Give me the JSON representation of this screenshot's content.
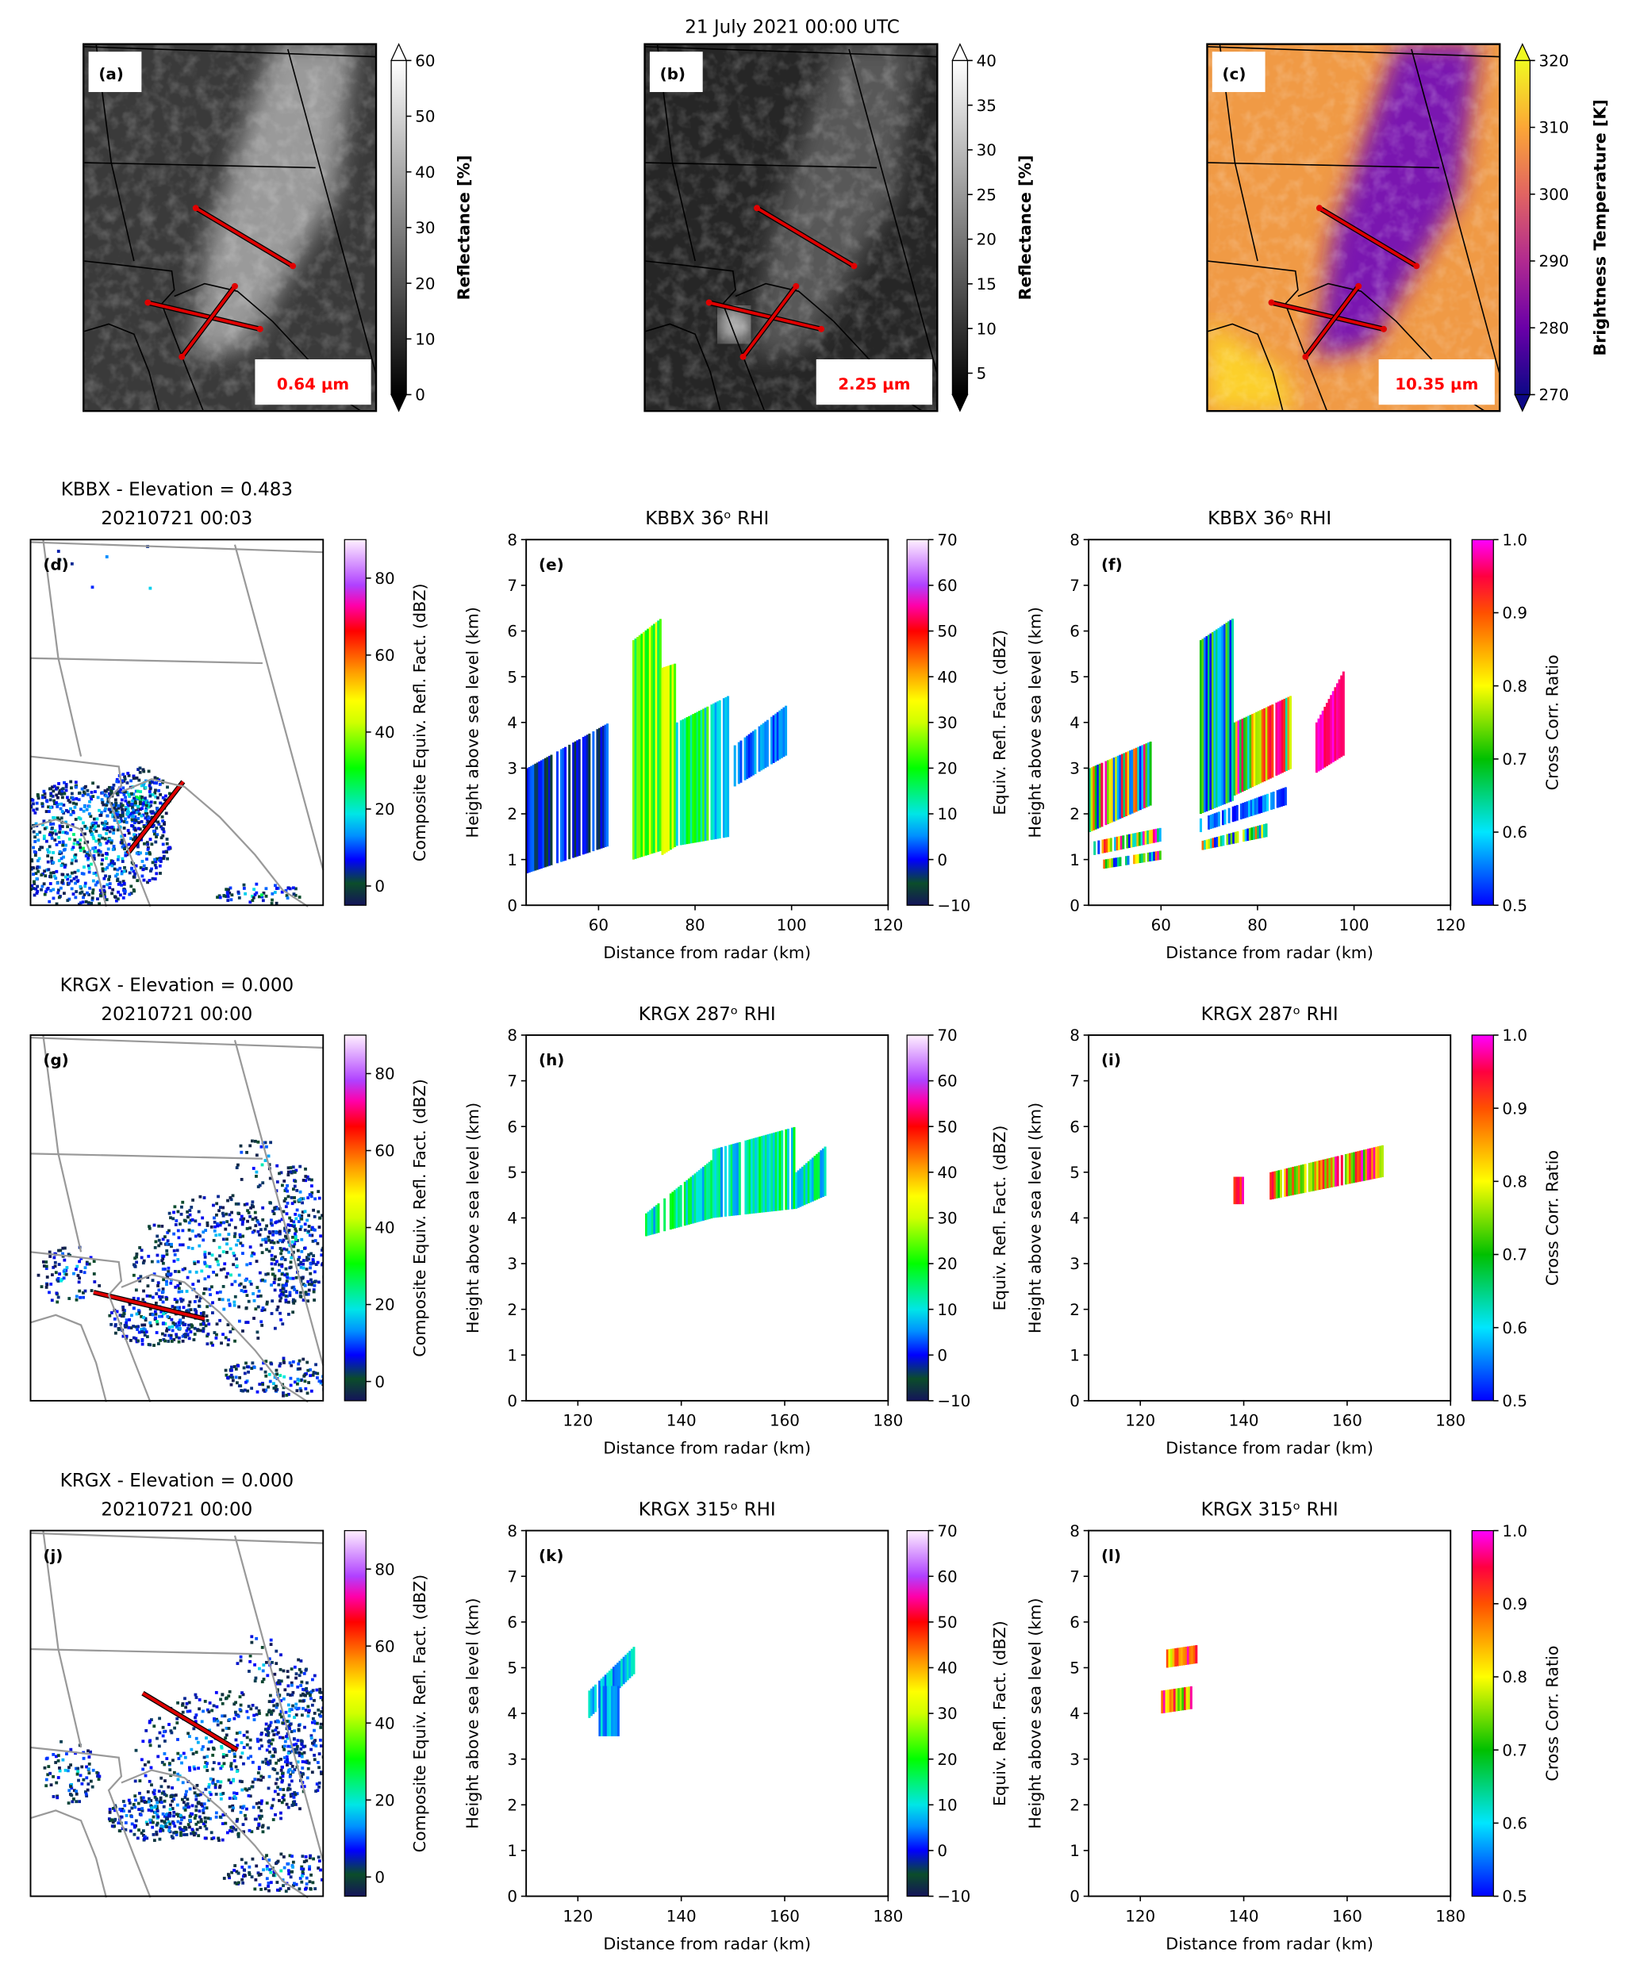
{
  "figure_title": "21 July 2021 00:00 UTC",
  "colormaps": {
    "gray": [
      [
        0,
        "#000000"
      ],
      [
        1,
        "#ffffff"
      ]
    ],
    "plasma": [
      [
        0,
        "#0d0887"
      ],
      [
        0.2,
        "#6a00a8"
      ],
      [
        0.4,
        "#b12a90"
      ],
      [
        0.6,
        "#e16462"
      ],
      [
        0.8,
        "#fca636"
      ],
      [
        1,
        "#f0f921"
      ]
    ],
    "reflectivity": [
      [
        0,
        "#14145a"
      ],
      [
        0.06,
        "#0b4d2a"
      ],
      [
        0.125,
        "#0000ff"
      ],
      [
        0.19,
        "#0090ff"
      ],
      [
        0.25,
        "#00e6e6"
      ],
      [
        0.375,
        "#00ff00"
      ],
      [
        0.5,
        "#d0ff00"
      ],
      [
        0.56,
        "#ffff00"
      ],
      [
        0.64,
        "#ff9a00"
      ],
      [
        0.75,
        "#ff0000"
      ],
      [
        0.82,
        "#ff00aa"
      ],
      [
        0.875,
        "#b040ff"
      ],
      [
        1,
        "#fff0ff"
      ]
    ],
    "cross_corr": [
      [
        0,
        "#0000ff"
      ],
      [
        0.2,
        "#00e6ff"
      ],
      [
        0.4,
        "#00c000"
      ],
      [
        0.6,
        "#ffff00"
      ],
      [
        0.8,
        "#ff5000"
      ],
      [
        0.9,
        "#ff0040"
      ],
      [
        1,
        "#ff00ff"
      ]
    ]
  },
  "chart_data": [
    {
      "panel_label": "(a)",
      "type": "heatmap",
      "channel_label": "0.64 µm",
      "colorbar": {
        "label": "Reflectance [%]",
        "colormap": "gray",
        "range": [
          0,
          60
        ],
        "ticks": [
          0,
          10,
          20,
          30,
          40,
          50,
          60
        ],
        "tick_labels": [
          "0",
          "10",
          "20",
          "30",
          "40",
          "50",
          "60"
        ],
        "extend": "both"
      }
    },
    {
      "panel_label": "(b)",
      "type": "heatmap",
      "channel_label": "2.25 µm",
      "colorbar": {
        "label": "Reflectance [%]",
        "colormap": "gray",
        "range": [
          2.6,
          40
        ],
        "ticks": [
          5,
          10,
          15,
          20,
          25,
          30,
          35,
          40
        ],
        "tick_labels": [
          "5",
          "10",
          "15",
          "20",
          "25",
          "30",
          "35",
          "40"
        ],
        "extend": "both"
      }
    },
    {
      "panel_label": "(c)",
      "type": "heatmap",
      "channel_label": "10.35 µm",
      "colorbar": {
        "label": "Brightness Temperature [K]",
        "colormap": "plasma",
        "range": [
          270,
          320
        ],
        "ticks": [
          270,
          280,
          290,
          300,
          310,
          320
        ],
        "tick_labels": [
          "270",
          "280",
          "290",
          "300",
          "310",
          "320"
        ],
        "extend": "both"
      }
    },
    {
      "panel_label": "(d)",
      "type": "heatmap",
      "title": [
        "KBBX - Elevation = 0.483",
        "20210721 00:03"
      ],
      "colorbar": {
        "label": "Composite Equiv. Refl. Fact. (dBZ)",
        "colormap": "reflectivity",
        "range": [
          -5,
          90
        ],
        "ticks": [
          0,
          20,
          40,
          60,
          80
        ],
        "tick_labels": [
          "0",
          "20",
          "40",
          "60",
          "80"
        ]
      }
    },
    {
      "panel_label": "(e)",
      "type": "heatmap",
      "title": "KBBX 36ᵒ RHI",
      "xlabel": "Distance from radar (km)",
      "ylabel": "Height above sea level (km)",
      "xlim": [
        45,
        120
      ],
      "ylim": [
        0,
        8
      ],
      "xticks": [
        60,
        80,
        100,
        120
      ],
      "xtick_labels": [
        "60",
        "80",
        "100",
        "120"
      ],
      "yticks": [
        0,
        1,
        2,
        3,
        4,
        5,
        6,
        7,
        8
      ],
      "ytick_labels": [
        "0",
        "1",
        "2",
        "3",
        "4",
        "5",
        "6",
        "7",
        "8"
      ],
      "echoes": [
        {
          "x": [
            45,
            62
          ],
          "bottom": [
            0.7,
            1.3
          ],
          "top": [
            3.0,
            4.0
          ],
          "value": [
            -8,
            5
          ]
        },
        {
          "x": [
            67,
            73
          ],
          "bottom": [
            1.0,
            1.2
          ],
          "top": [
            5.8,
            6.3
          ],
          "value": [
            15,
            35
          ]
        },
        {
          "x": [
            73,
            76
          ],
          "bottom": [
            1.1,
            1.3
          ],
          "top": [
            5.2,
            5.3
          ],
          "value": [
            20,
            35
          ]
        },
        {
          "x": [
            76,
            87
          ],
          "bottom": [
            1.3,
            1.5
          ],
          "top": [
            4.0,
            4.6
          ],
          "value": [
            5,
            25
          ]
        },
        {
          "x": [
            88,
            99
          ],
          "bottom": [
            2.6,
            3.3
          ],
          "top": [
            3.5,
            4.4
          ],
          "value": [
            0,
            10
          ]
        }
      ],
      "colorbar": {
        "label": "Equiv. Refl. Fact. (dBZ)",
        "colormap": "reflectivity",
        "range": [
          -10,
          70
        ],
        "ticks": [
          -10,
          0,
          10,
          20,
          30,
          40,
          50,
          60,
          70
        ],
        "tick_labels": [
          "−10",
          "0",
          "10",
          "20",
          "30",
          "40",
          "50",
          "60",
          "70"
        ]
      }
    },
    {
      "panel_label": "(f)",
      "type": "heatmap",
      "title": "KBBX 36ᵒ RHI",
      "xlabel": "Distance from radar (km)",
      "ylabel": "Height above sea level (km)",
      "xlim": [
        45,
        120
      ],
      "ylim": [
        0,
        8
      ],
      "xticks": [
        60,
        80,
        100,
        120
      ],
      "xtick_labels": [
        "60",
        "80",
        "100",
        "120"
      ],
      "yticks": [
        0,
        1,
        2,
        3,
        4,
        5,
        6,
        7,
        8
      ],
      "ytick_labels": [
        "0",
        "1",
        "2",
        "3",
        "4",
        "5",
        "6",
        "7",
        "8"
      ],
      "echoes": [
        {
          "x": [
            45,
            58
          ],
          "bottom": [
            1.6,
            2.2
          ],
          "top": [
            3.0,
            3.6
          ],
          "value": [
            0.5,
            1.0
          ]
        },
        {
          "x": [
            46,
            60
          ],
          "bottom": [
            1.1,
            1.4
          ],
          "top": [
            1.4,
            1.7
          ],
          "value": [
            0.5,
            1.0
          ]
        },
        {
          "x": [
            48,
            60
          ],
          "bottom": [
            0.8,
            1.0
          ],
          "top": [
            1.0,
            1.2
          ],
          "value": [
            0.5,
            1.0
          ]
        },
        {
          "x": [
            68,
            75
          ],
          "bottom": [
            2.0,
            2.3
          ],
          "top": [
            5.8,
            6.3
          ],
          "value": [
            0.5,
            0.75
          ]
        },
        {
          "x": [
            75,
            87
          ],
          "bottom": [
            2.4,
            3.0
          ],
          "top": [
            4.0,
            4.6
          ],
          "value": [
            0.5,
            1.0
          ]
        },
        {
          "x": [
            68,
            86
          ],
          "bottom": [
            1.6,
            2.2
          ],
          "top": [
            1.9,
            2.6
          ],
          "value": [
            0.5,
            0.6
          ]
        },
        {
          "x": [
            68,
            82
          ],
          "bottom": [
            1.2,
            1.5
          ],
          "top": [
            1.4,
            1.8
          ],
          "value": [
            0.5,
            1.0
          ]
        },
        {
          "x": [
            92,
            98
          ],
          "bottom": [
            2.9,
            3.3
          ],
          "top": [
            4.0,
            5.2
          ],
          "value": [
            0.95,
            1.0
          ]
        }
      ],
      "colorbar": {
        "label": "Cross Corr. Ratio",
        "colormap": "cross_corr",
        "range": [
          0.5,
          1.0
        ],
        "ticks": [
          0.5,
          0.6,
          0.7,
          0.8,
          0.9,
          1.0
        ],
        "tick_labels": [
          "0.5",
          "0.6",
          "0.7",
          "0.8",
          "0.9",
          "1.0"
        ]
      }
    },
    {
      "panel_label": "(g)",
      "type": "heatmap",
      "title": [
        "KRGX - Elevation = 0.000",
        "20210721 00:00"
      ],
      "colorbar": {
        "label": "Composite Equiv. Refl. Fact. (dBZ)",
        "colormap": "reflectivity",
        "range": [
          -5,
          90
        ],
        "ticks": [
          0,
          20,
          40,
          60,
          80
        ],
        "tick_labels": [
          "0",
          "20",
          "40",
          "60",
          "80"
        ]
      }
    },
    {
      "panel_label": "(h)",
      "type": "heatmap",
      "title": "KRGX 287ᵒ RHI",
      "xlabel": "Distance from radar (km)",
      "ylabel": "Height above sea level (km)",
      "xlim": [
        110,
        180
      ],
      "ylim": [
        0,
        8
      ],
      "xticks": [
        120,
        140,
        160,
        180
      ],
      "xtick_labels": [
        "120",
        "140",
        "160",
        "180"
      ],
      "yticks": [
        0,
        1,
        2,
        3,
        4,
        5,
        6,
        7,
        8
      ],
      "ytick_labels": [
        "0",
        "1",
        "2",
        "3",
        "4",
        "5",
        "6",
        "7",
        "8"
      ],
      "echoes": [
        {
          "x": [
            133,
            146
          ],
          "bottom": [
            3.6,
            4.0
          ],
          "top": [
            4.1,
            5.3
          ],
          "value": [
            5,
            20
          ]
        },
        {
          "x": [
            146,
            162
          ],
          "bottom": [
            4.0,
            4.2
          ],
          "top": [
            5.5,
            6.0
          ],
          "value": [
            5,
            20
          ]
        },
        {
          "x": [
            162,
            168
          ],
          "bottom": [
            4.2,
            4.5
          ],
          "top": [
            5.0,
            5.6
          ],
          "value": [
            5,
            20
          ]
        }
      ],
      "colorbar": {
        "label": "Equiv. Refl. Fact. (dBZ)",
        "colormap": "reflectivity",
        "range": [
          -10,
          70
        ],
        "ticks": [
          -10,
          0,
          10,
          20,
          30,
          40,
          50,
          60,
          70
        ],
        "tick_labels": [
          "−10",
          "0",
          "10",
          "20",
          "30",
          "40",
          "50",
          "60",
          "70"
        ]
      }
    },
    {
      "panel_label": "(i)",
      "type": "heatmap",
      "title": "KRGX 287ᵒ RHI",
      "xlabel": "Distance from radar (km)",
      "ylabel": "Height above sea level (km)",
      "xlim": [
        110,
        180
      ],
      "ylim": [
        0,
        8
      ],
      "xticks": [
        120,
        140,
        160,
        180
      ],
      "xtick_labels": [
        "120",
        "140",
        "160",
        "180"
      ],
      "yticks": [
        0,
        1,
        2,
        3,
        4,
        5,
        6,
        7,
        8
      ],
      "ytick_labels": [
        "0",
        "1",
        "2",
        "3",
        "4",
        "5",
        "6",
        "7",
        "8"
      ],
      "echoes": [
        {
          "x": [
            138,
            140
          ],
          "bottom": [
            4.3,
            4.3
          ],
          "top": [
            4.9,
            4.9
          ],
          "value": [
            0.9,
            1.0
          ]
        },
        {
          "x": [
            145,
            167
          ],
          "bottom": [
            4.4,
            4.9
          ],
          "top": [
            5.0,
            5.6
          ],
          "value": [
            0.7,
            1.0
          ]
        }
      ],
      "colorbar": {
        "label": "Cross Corr. Ratio",
        "colormap": "cross_corr",
        "range": [
          0.5,
          1.0
        ],
        "ticks": [
          0.5,
          0.6,
          0.7,
          0.8,
          0.9,
          1.0
        ],
        "tick_labels": [
          "0.5",
          "0.6",
          "0.7",
          "0.8",
          "0.9",
          "1.0"
        ]
      }
    },
    {
      "panel_label": "(j)",
      "type": "heatmap",
      "title": [
        "KRGX - Elevation = 0.000",
        "20210721 00:00"
      ],
      "colorbar": {
        "label": "Composite Equiv. Refl. Fact. (dBZ)",
        "colormap": "reflectivity",
        "range": [
          -5,
          90
        ],
        "ticks": [
          0,
          20,
          40,
          60,
          80
        ],
        "tick_labels": [
          "0",
          "20",
          "40",
          "60",
          "80"
        ]
      }
    },
    {
      "panel_label": "(k)",
      "type": "heatmap",
      "title": "KRGX 315ᵒ RHI",
      "xlabel": "Distance from radar (km)",
      "ylabel": "Height above sea level (km)",
      "xlim": [
        110,
        180
      ],
      "ylim": [
        0,
        8
      ],
      "xticks": [
        120,
        140,
        160,
        180
      ],
      "xtick_labels": [
        "120",
        "140",
        "160",
        "180"
      ],
      "yticks": [
        0,
        1,
        2,
        3,
        4,
        5,
        6,
        7,
        8
      ],
      "ytick_labels": [
        "0",
        "1",
        "2",
        "3",
        "4",
        "5",
        "6",
        "7",
        "8"
      ],
      "echoes": [
        {
          "x": [
            122,
            131
          ],
          "bottom": [
            3.9,
            4.9
          ],
          "top": [
            4.5,
            5.5
          ],
          "value": [
            3,
            12
          ]
        },
        {
          "x": [
            124,
            128
          ],
          "bottom": [
            3.5,
            3.5
          ],
          "top": [
            4.6,
            4.6
          ],
          "value": [
            3,
            12
          ]
        }
      ],
      "colorbar": {
        "label": "Equiv. Refl. Fact. (dBZ)",
        "colormap": "reflectivity",
        "range": [
          -10,
          70
        ],
        "ticks": [
          -10,
          0,
          10,
          20,
          30,
          40,
          50,
          60,
          70
        ],
        "tick_labels": [
          "−10",
          "0",
          "10",
          "20",
          "30",
          "40",
          "50",
          "60",
          "70"
        ]
      }
    },
    {
      "panel_label": "(l)",
      "type": "heatmap",
      "title": "KRGX 315ᵒ RHI",
      "xlabel": "Distance from radar (km)",
      "ylabel": "Height above sea level (km)",
      "xlim": [
        110,
        180
      ],
      "ylim": [
        0,
        8
      ],
      "xticks": [
        120,
        140,
        160,
        180
      ],
      "xtick_labels": [
        "120",
        "140",
        "160",
        "180"
      ],
      "yticks": [
        0,
        1,
        2,
        3,
        4,
        5,
        6,
        7,
        8
      ],
      "ytick_labels": [
        "0",
        "1",
        "2",
        "3",
        "4",
        "5",
        "6",
        "7",
        "8"
      ],
      "echoes": [
        {
          "x": [
            125,
            131
          ],
          "bottom": [
            5.0,
            5.1
          ],
          "top": [
            5.4,
            5.5
          ],
          "value": [
            0.7,
            1.0
          ]
        },
        {
          "x": [
            124,
            130
          ],
          "bottom": [
            4.0,
            4.1
          ],
          "top": [
            4.5,
            4.6
          ],
          "value": [
            0.7,
            1.0
          ]
        }
      ],
      "colorbar": {
        "label": "Cross Corr. Ratio",
        "colormap": "cross_corr",
        "range": [
          0.5,
          1.0
        ],
        "ticks": [
          0.5,
          0.6,
          0.7,
          0.8,
          0.9,
          1.0
        ],
        "tick_labels": [
          "0.5",
          "0.6",
          "0.7",
          "0.8",
          "0.9",
          "1.0"
        ]
      }
    }
  ]
}
